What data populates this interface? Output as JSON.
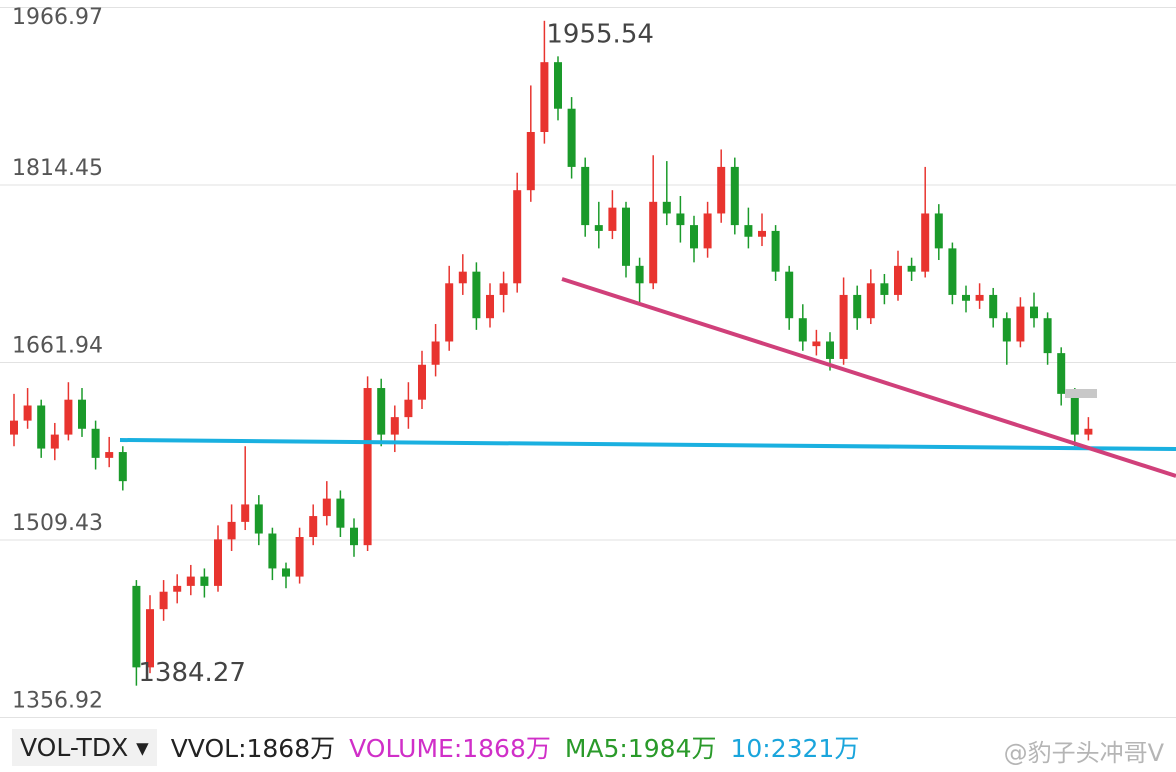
{
  "chart_data": {
    "type": "candlestick",
    "ylim": [
      1356.92,
      1966.97
    ],
    "yticks": [
      1356.92,
      1509.43,
      1661.94,
      1814.45,
      1966.97
    ],
    "grid": true,
    "up_color": "#e8342f",
    "down_color": "#1a9a2a",
    "ohlc": [
      [
        1600,
        1635,
        1590,
        1612
      ],
      [
        1612,
        1640,
        1605,
        1625
      ],
      [
        1625,
        1630,
        1580,
        1588
      ],
      [
        1588,
        1610,
        1578,
        1600
      ],
      [
        1600,
        1645,
        1595,
        1630
      ],
      [
        1630,
        1640,
        1598,
        1605
      ],
      [
        1605,
        1612,
        1570,
        1580
      ],
      [
        1580,
        1598,
        1572,
        1585
      ],
      [
        1585,
        1590,
        1552,
        1560
      ],
      [
        1470,
        1475,
        1384.27,
        1400
      ],
      [
        1400,
        1462,
        1395,
        1450
      ],
      [
        1450,
        1475,
        1440,
        1465
      ],
      [
        1465,
        1480,
        1455,
        1470
      ],
      [
        1470,
        1488,
        1462,
        1478
      ],
      [
        1478,
        1485,
        1460,
        1470
      ],
      [
        1470,
        1522,
        1465,
        1510
      ],
      [
        1510,
        1540,
        1500,
        1525
      ],
      [
        1525,
        1590,
        1518,
        1540
      ],
      [
        1540,
        1548,
        1505,
        1515
      ],
      [
        1515,
        1520,
        1475,
        1485
      ],
      [
        1485,
        1490,
        1468,
        1478
      ],
      [
        1478,
        1520,
        1472,
        1512
      ],
      [
        1512,
        1540,
        1505,
        1530
      ],
      [
        1530,
        1560,
        1522,
        1545
      ],
      [
        1545,
        1552,
        1512,
        1520
      ],
      [
        1520,
        1528,
        1495,
        1505
      ],
      [
        1505,
        1650,
        1500,
        1640
      ],
      [
        1640,
        1648,
        1590,
        1600
      ],
      [
        1600,
        1625,
        1585,
        1615
      ],
      [
        1615,
        1645,
        1605,
        1630
      ],
      [
        1630,
        1672,
        1622,
        1660
      ],
      [
        1660,
        1695,
        1650,
        1680
      ],
      [
        1680,
        1745,
        1672,
        1730
      ],
      [
        1730,
        1755,
        1720,
        1740
      ],
      [
        1740,
        1748,
        1690,
        1700
      ],
      [
        1700,
        1730,
        1692,
        1720
      ],
      [
        1720,
        1740,
        1705,
        1730
      ],
      [
        1730,
        1825,
        1722,
        1810
      ],
      [
        1810,
        1900,
        1800,
        1860
      ],
      [
        1860,
        1955.54,
        1850,
        1920
      ],
      [
        1920,
        1925,
        1870,
        1880
      ],
      [
        1880,
        1890,
        1820,
        1830
      ],
      [
        1830,
        1838,
        1770,
        1780
      ],
      [
        1780,
        1800,
        1760,
        1775
      ],
      [
        1775,
        1810,
        1768,
        1795
      ],
      [
        1795,
        1800,
        1735,
        1745
      ],
      [
        1745,
        1752,
        1712,
        1730
      ],
      [
        1730,
        1840,
        1725,
        1800
      ],
      [
        1800,
        1835,
        1780,
        1790
      ],
      [
        1790,
        1805,
        1765,
        1780
      ],
      [
        1780,
        1788,
        1748,
        1760
      ],
      [
        1760,
        1800,
        1752,
        1790
      ],
      [
        1790,
        1845,
        1782,
        1830
      ],
      [
        1830,
        1838,
        1772,
        1780
      ],
      [
        1780,
        1795,
        1760,
        1770
      ],
      [
        1770,
        1790,
        1762,
        1775
      ],
      [
        1775,
        1780,
        1732,
        1740
      ],
      [
        1740,
        1745,
        1690,
        1700
      ],
      [
        1700,
        1712,
        1672,
        1680
      ],
      [
        1676,
        1690,
        1668,
        1680
      ],
      [
        1680,
        1688,
        1655,
        1665
      ],
      [
        1665,
        1735,
        1660,
        1720
      ],
      [
        1720,
        1728,
        1690,
        1700
      ],
      [
        1700,
        1742,
        1695,
        1730
      ],
      [
        1730,
        1738,
        1712,
        1720
      ],
      [
        1720,
        1758,
        1715,
        1745
      ],
      [
        1745,
        1752,
        1732,
        1740
      ],
      [
        1740,
        1830,
        1735,
        1790
      ],
      [
        1790,
        1798,
        1750,
        1760
      ],
      [
        1760,
        1765,
        1712,
        1720
      ],
      [
        1720,
        1728,
        1705,
        1715
      ],
      [
        1715,
        1730,
        1708,
        1720
      ],
      [
        1720,
        1726,
        1692,
        1700
      ],
      [
        1700,
        1705,
        1660,
        1680
      ],
      [
        1680,
        1718,
        1675,
        1710
      ],
      [
        1710,
        1722,
        1692,
        1700
      ],
      [
        1700,
        1705,
        1660,
        1670
      ],
      [
        1670,
        1675,
        1625,
        1635
      ],
      [
        1635,
        1640,
        1590,
        1600
      ],
      [
        1600,
        1615,
        1595,
        1605
      ]
    ]
  },
  "footer": {
    "indicator": "VOL-TDX",
    "items": [
      {
        "text": "VVOL:1868万",
        "color": "#222222"
      },
      {
        "text": "VOLUME:1868万",
        "color": "#d02fc8"
      },
      {
        "text": "MA5:1984万",
        "color": "#2a9a2a"
      },
      {
        "text": "10:2321万",
        "color": "#1aa5dc"
      }
    ],
    "watermark": "@豹子头冲哥V"
  }
}
